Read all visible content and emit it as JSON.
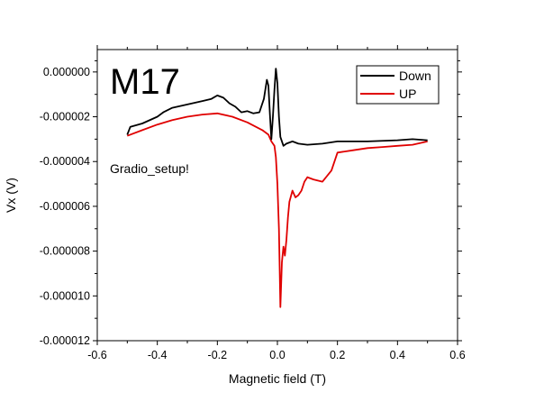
{
  "chart_data": {
    "type": "line",
    "title": "M17",
    "annotation": "Gradio_setup!",
    "xlabel": "Magnetic field (T)",
    "ylabel": "Vx (V)",
    "xlim": [
      -0.6,
      0.6
    ],
    "ylim": [
      -1.2e-05,
      1e-06
    ],
    "x_ticks": [
      -0.6,
      -0.4,
      -0.2,
      0.0,
      0.2,
      0.4,
      0.6
    ],
    "x_tick_labels": [
      "-0.6",
      "-0.4",
      "-0.2",
      "0.0",
      "0.2",
      "0.4",
      "0.6"
    ],
    "y_ticks": [
      0.0,
      -2e-06,
      -4e-06,
      -6e-06,
      -8e-06,
      -1e-05,
      -1.2e-05
    ],
    "y_tick_labels": [
      "0.000000",
      "-0.000002",
      "-0.000004",
      "-0.000006",
      "-0.000008",
      "-0.000010",
      "-0.000012"
    ],
    "grid": false,
    "legend_position": "top-right",
    "series": [
      {
        "name": "Down",
        "color": "#000000",
        "x": [
          -0.5,
          -0.49,
          -0.45,
          -0.4,
          -0.38,
          -0.35,
          -0.3,
          -0.25,
          -0.22,
          -0.2,
          -0.18,
          -0.16,
          -0.14,
          -0.12,
          -0.1,
          -0.08,
          -0.06,
          -0.045,
          -0.035,
          -0.03,
          -0.025,
          -0.02,
          -0.015,
          -0.01,
          -0.005,
          0.0,
          0.005,
          0.01,
          0.02,
          0.03,
          0.05,
          0.07,
          0.1,
          0.15,
          0.2,
          0.3,
          0.4,
          0.45,
          0.5
        ],
        "y": [
          -2.8e-06,
          -2.45e-06,
          -2.3e-06,
          -2e-06,
          -1.8e-06,
          -1.6e-06,
          -1.45e-06,
          -1.3e-06,
          -1.2e-06,
          -1.05e-06,
          -1.15e-06,
          -1.4e-06,
          -1.55e-06,
          -1.8e-06,
          -1.75e-06,
          -1.85e-06,
          -1.8e-06,
          -1.2e-06,
          -3.5e-07,
          -6e-07,
          -1.9e-06,
          -3e-06,
          -2e-06,
          -8e-07,
          1.5e-07,
          -5e-07,
          -2e-06,
          -2.9e-06,
          -3.3e-06,
          -3.2e-06,
          -3.1e-06,
          -3.2e-06,
          -3.25e-06,
          -3.2e-06,
          -3.1e-06,
          -3.1e-06,
          -3.05e-06,
          -3e-06,
          -3.05e-06
        ]
      },
      {
        "name": "UP",
        "color": "#e00000",
        "x": [
          -0.5,
          -0.45,
          -0.4,
          -0.35,
          -0.3,
          -0.25,
          -0.2,
          -0.15,
          -0.1,
          -0.05,
          -0.03,
          -0.02,
          -0.01,
          -0.005,
          0.0,
          0.005,
          0.01,
          0.015,
          0.02,
          0.025,
          0.03,
          0.035,
          0.04,
          0.05,
          0.06,
          0.07,
          0.08,
          0.09,
          0.1,
          0.12,
          0.15,
          0.18,
          0.2,
          0.25,
          0.3,
          0.35,
          0.4,
          0.45,
          0.5
        ],
        "y": [
          -2.85e-06,
          -2.6e-06,
          -2.35e-06,
          -2.15e-06,
          -2e-06,
          -1.9e-06,
          -1.85e-06,
          -2e-06,
          -2.25e-06,
          -2.6e-06,
          -2.8e-06,
          -3.1e-06,
          -3.3e-06,
          -3.8e-06,
          -5e-06,
          -7e-06,
          -1.05e-05,
          -8.5e-06,
          -7.8e-06,
          -8.2e-06,
          -7.5e-06,
          -6.5e-06,
          -5.8e-06,
          -5.3e-06,
          -5.6e-06,
          -5.5e-06,
          -5.3e-06,
          -4.9e-06,
          -4.7e-06,
          -4.8e-06,
          -4.9e-06,
          -4.4e-06,
          -3.6e-06,
          -3.5e-06,
          -3.4e-06,
          -3.35e-06,
          -3.3e-06,
          -3.25e-06,
          -3.1e-06
        ]
      }
    ]
  }
}
